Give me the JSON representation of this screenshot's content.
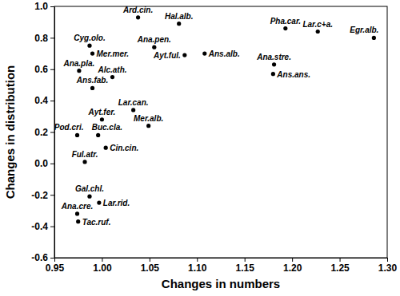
{
  "chart_data": {
    "type": "scatter",
    "x_label": "Changes in numbers",
    "y_label": "Changes in distribution",
    "labels": [
      "Ard.cin.",
      "Hal.alb.",
      "Pha.car.",
      "Lar.c+a.",
      "Egr.alb.",
      "Cyg.olo.",
      "Mer.mer.",
      "Ana.pen.",
      "Ayt.ful.",
      "Ans.alb.",
      "Ana.pla.",
      "Alc.ath.",
      "Ans.fab.",
      "Ana.stre.",
      "Ans.ans.",
      "Lar.can.",
      "Ayt.fer.",
      "Mer.alb.",
      "Pod.cri.",
      "Buc.cla.",
      "Cin.cin.",
      "Ful.atr.",
      "Gal.chl.",
      "Lar.rid.",
      "Ana.cre.",
      "Tac.ruf."
    ],
    "x": [
      1.038,
      1.081,
      1.193,
      1.227,
      1.286,
      0.987,
      0.99,
      1.055,
      1.087,
      1.108,
      0.976,
      1.011,
      0.99,
      1.181,
      1.18,
      1.033,
      1.0,
      1.049,
      0.974,
      0.996,
      1.004,
      0.982,
      0.987,
      0.997,
      0.974,
      0.975
    ],
    "values": [
      0.93,
      0.89,
      0.86,
      0.84,
      0.8,
      0.75,
      0.7,
      0.74,
      0.69,
      0.7,
      0.59,
      0.55,
      0.48,
      0.63,
      0.57,
      0.34,
      0.28,
      0.24,
      0.18,
      0.18,
      0.1,
      0.01,
      -0.21,
      -0.25,
      -0.32,
      -0.37
    ],
    "color": "#000000",
    "marker": "circle",
    "xlim": [
      0.95,
      1.3
    ],
    "ylim": [
      -0.6,
      1.0
    ],
    "xticks": [
      0.95,
      {
        "value": 1.0,
        "label": "1.00"
      },
      1.05,
      {
        "value": 1.1,
        "label": "1.10"
      },
      1.15,
      {
        "value": 1.2,
        "label": "1.20"
      },
      1.25,
      {
        "value": 1.3,
        "label": "1.30"
      }
    ],
    "yticks": [
      -0.6,
      -0.4,
      -0.2,
      {
        "value": 0,
        "label": "0.0"
      },
      0.2,
      0.4,
      0.6,
      0.8,
      {
        "value": 1,
        "label": "1.0"
      }
    ],
    "grid": false
  }
}
